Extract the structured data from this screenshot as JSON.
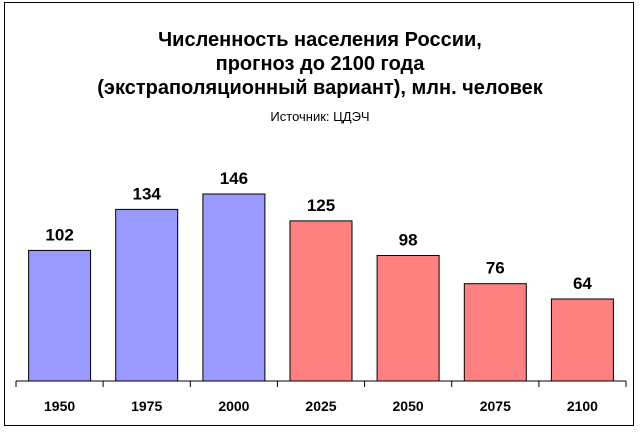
{
  "chart_data": {
    "type": "bar",
    "title_lines": [
      "Численность населения России,",
      "прогноз до 2100 года",
      "(экстраполяционный вариант), млн. человек"
    ],
    "subtitle": "Источник: ЦДЭЧ",
    "categories": [
      "1950",
      "1975",
      "2000",
      "2025",
      "2050",
      "2075",
      "2100"
    ],
    "values": [
      102,
      134,
      146,
      125,
      98,
      76,
      64
    ],
    "colors": [
      "#9999ff",
      "#9999ff",
      "#9999ff",
      "#ff8080",
      "#ff8080",
      "#ff8080",
      "#ff8080"
    ],
    "ylim": [
      0,
      146
    ],
    "grid": false,
    "legend": "none"
  }
}
